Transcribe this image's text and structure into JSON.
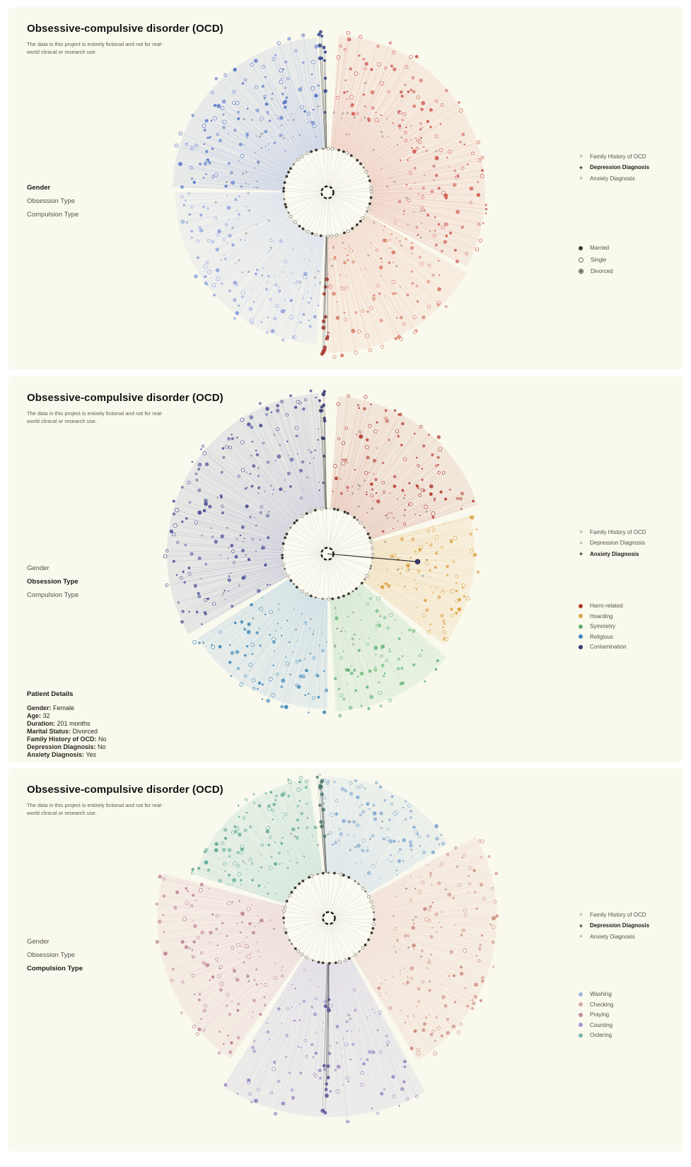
{
  "panels": [
    {
      "title": "Obsessive-compulsive disorder (OCD)",
      "subtitle": "The data in this project is entirely fictional and not for real-world clinical or research use.",
      "menu": [
        {
          "label": "Gender",
          "active": true
        },
        {
          "label": "Obsession Type",
          "active": false
        },
        {
          "label": "Compulsion Type",
          "active": false
        }
      ],
      "overlay_legend": [
        {
          "marker": "+",
          "label": "Family History of OCD",
          "bold": false
        },
        {
          "marker": "+",
          "label": "Depression Diagnosis",
          "bold": true
        },
        {
          "marker": "+",
          "label": "Anxiety Diagnosis",
          "bold": false
        }
      ],
      "category_legend": [
        {
          "label": "Married",
          "symbol": "filled",
          "color": "#3c3b33"
        },
        {
          "label": "Single",
          "symbol": "open",
          "color": "#6f6e64"
        },
        {
          "label": "Divorced",
          "symbol": "dot-ring",
          "color": "#3c3b33"
        }
      ],
      "patient_details": null,
      "chart_data": {
        "type": "radial-cluster",
        "group_by": "Gender",
        "legend_position": "right",
        "inner_radius": 62,
        "center": [
          451,
          262
        ],
        "sectors": [
          {
            "name": "blue upper-left group",
            "start": 272,
            "end": 356,
            "outer": 226,
            "rays": 110,
            "dot": "#4f6fc8",
            "line": "#a3b4e2",
            "wash": "rgba(92,122,202,0.11)"
          },
          {
            "name": "blue lower-left group",
            "start": 184,
            "end": 270,
            "outer": 222,
            "rays": 95,
            "dot": "#8d9ede",
            "line": "#c0c9ee",
            "wash": "rgba(150,165,230,0.10)"
          },
          {
            "name": "red upper-right group",
            "start": 4,
            "end": 118,
            "outer": 230,
            "rays": 150,
            "dot": "#cf5a50",
            "line": "#e6aba3",
            "wash": "rgba(214,108,100,0.10)"
          },
          {
            "name": "red lower-right group",
            "start": 120,
            "end": 180,
            "outer": 234,
            "rays": 75,
            "dot": "#d97a64",
            "line": "#ecbcae",
            "wash": "rgba(224,130,110,0.10)"
          }
        ],
        "axis_clusters": [
          {
            "angle": 358,
            "dot": "#2b3e8c",
            "outer": 230
          },
          {
            "angle": 181,
            "dot": "#a8352a",
            "outer": 234
          }
        ]
      }
    },
    {
      "title": "Obsessive-compulsive disorder (OCD)",
      "subtitle": "The data in this project is entirely fictional and not for real-world clinical or research use.",
      "menu": [
        {
          "label": "Gender",
          "active": false
        },
        {
          "label": "Obsession Type",
          "active": true
        },
        {
          "label": "Compulsion Type",
          "active": false
        }
      ],
      "overlay_legend": [
        {
          "marker": "+",
          "label": "Family History of OCD",
          "bold": false
        },
        {
          "marker": "+",
          "label": "Depression Diagnosis",
          "bold": false
        },
        {
          "marker": "+",
          "label": "Anxiety Diagnosis",
          "bold": true
        }
      ],
      "category_legend": [
        {
          "label": "Harm-related",
          "symbol": "filled",
          "color": "#b13a2e"
        },
        {
          "label": "Hoarding",
          "symbol": "filled",
          "color": "#e0a44e"
        },
        {
          "label": "Symmetry",
          "symbol": "filled",
          "color": "#5fae70"
        },
        {
          "label": "Religious",
          "symbol": "filled",
          "color": "#3d86bc"
        },
        {
          "label": "Contamination",
          "symbol": "filled",
          "color": "#2f3570"
        }
      ],
      "patient_details": {
        "heading": "Patient Details",
        "fields": [
          {
            "label": "Gender:",
            "value": "Female"
          },
          {
            "label": "Age:",
            "value": "32"
          },
          {
            "label": "Duration:",
            "value": "201 months"
          },
          {
            "label": "Marital Status:",
            "value": "Divorced"
          },
          {
            "label": "Family History of OCD:",
            "value": "No"
          },
          {
            "label": "Depression Diagnosis:",
            "value": "No"
          },
          {
            "label": "Anxiety Diagnosis:",
            "value": "Yes"
          }
        ]
      },
      "chart_data": {
        "type": "radial-cluster",
        "group_by": "Obsession Type",
        "legend_position": "right",
        "inner_radius": 64,
        "center": [
          451,
          251
        ],
        "sectors": [
          {
            "name": "Harm-related",
            "start": 4,
            "end": 72,
            "outer": 230,
            "rays": 95,
            "dot": "#b13a2e",
            "line": "#dfa79d",
            "wash": "rgba(180,72,58,0.10)"
          },
          {
            "name": "Hoarding",
            "start": 75,
            "end": 128,
            "outer": 215,
            "rays": 70,
            "dot": "#dc9f3e",
            "line": "#ead0a2",
            "wash": "rgba(228,170,80,0.13)"
          },
          {
            "name": "Symmetry",
            "start": 131,
            "end": 177,
            "outer": 230,
            "rays": 60,
            "dot": "#62b376",
            "line": "#bcdcc2",
            "wash": "rgba(110,190,130,0.13)"
          },
          {
            "name": "Religious",
            "start": 180,
            "end": 237,
            "outer": 226,
            "rays": 75,
            "dot": "#3e87ba",
            "line": "#accde0",
            "wash": "rgba(80,150,200,0.12)"
          },
          {
            "name": "Contamination",
            "start": 240,
            "end": 357,
            "outer": 234,
            "rays": 150,
            "dot": "#4a4e96",
            "line": "#aeb0d2",
            "wash": "rgba(90,95,160,0.12)"
          }
        ],
        "axis_clusters": [
          {
            "angle": 358,
            "dot": "#2f3570",
            "outer": 232
          }
        ],
        "selected_node": {
          "bearing_deg": 95,
          "radius": 128
        }
      }
    },
    {
      "title": "Obsessive-compulsive disorder (OCD)",
      "subtitle": "The data in this project is entirely fictional and not for real-world clinical or research use.",
      "menu": [
        {
          "label": "Gender",
          "active": false
        },
        {
          "label": "Obsession Type",
          "active": false
        },
        {
          "label": "Compulsion Type",
          "active": true
        }
      ],
      "overlay_legend": [
        {
          "marker": "+",
          "label": "Family History of OCD",
          "bold": false
        },
        {
          "marker": "+",
          "label": "Depression Diagnosis",
          "bold": true
        },
        {
          "marker": "+",
          "label": "Anxiety Diagnosis",
          "bold": false
        }
      ],
      "category_legend": [
        {
          "label": "Washing",
          "symbol": "filled",
          "color": "#9db9dc"
        },
        {
          "label": "Checking",
          "symbol": "filled",
          "color": "#d8a89c"
        },
        {
          "label": "Praying",
          "symbol": "filled",
          "color": "#c48f9b"
        },
        {
          "label": "Counting",
          "symbol": "filled",
          "color": "#a395cc"
        },
        {
          "label": "Ordering",
          "symbol": "filled",
          "color": "#7bb8a8"
        }
      ],
      "patient_details": null,
      "chart_data": {
        "type": "radial-cluster",
        "group_by": "Compulsion Type",
        "legend_position": "right",
        "inner_radius": 64,
        "center": [
          453,
          212
        ],
        "sectors": [
          {
            "name": "Washing",
            "start": -4,
            "end": 58,
            "outer": 205,
            "rays": 85,
            "dot": "#7fa8d0",
            "line": "#c6d8ec",
            "wash": "rgba(130,170,215,0.11)"
          },
          {
            "name": "Checking",
            "start": 61,
            "end": 148,
            "outer": 245,
            "rays": 115,
            "dot": "#cf8d80",
            "line": "#ecccc5",
            "wash": "rgba(220,150,135,0.11)"
          },
          {
            "name": "Counting",
            "start": 151,
            "end": 212,
            "outer": 290,
            "rays": 85,
            "dot": "#8f82c0",
            "line": "#d0c9e8",
            "wash": "rgba(150,140,200,0.12)"
          },
          {
            "name": "Praying",
            "start": 215,
            "end": 285,
            "outer": 250,
            "rays": 90,
            "dot": "#bb7f8c",
            "line": "#e6c6cd",
            "wash": "rgba(200,130,145,0.11)"
          },
          {
            "name": "Ordering",
            "start": 288,
            "end": 352,
            "outer": 205,
            "rays": 85,
            "dot": "#5ba895",
            "line": "#b6d8ce",
            "wash": "rgba(100,180,160,0.13)"
          }
        ],
        "axis_clusters": [
          {
            "angle": 356,
            "dot": "#4a7a6e",
            "outer": 200
          },
          {
            "angle": 181,
            "dot": "#5a4f9e",
            "outer": 290
          }
        ]
      }
    }
  ]
}
